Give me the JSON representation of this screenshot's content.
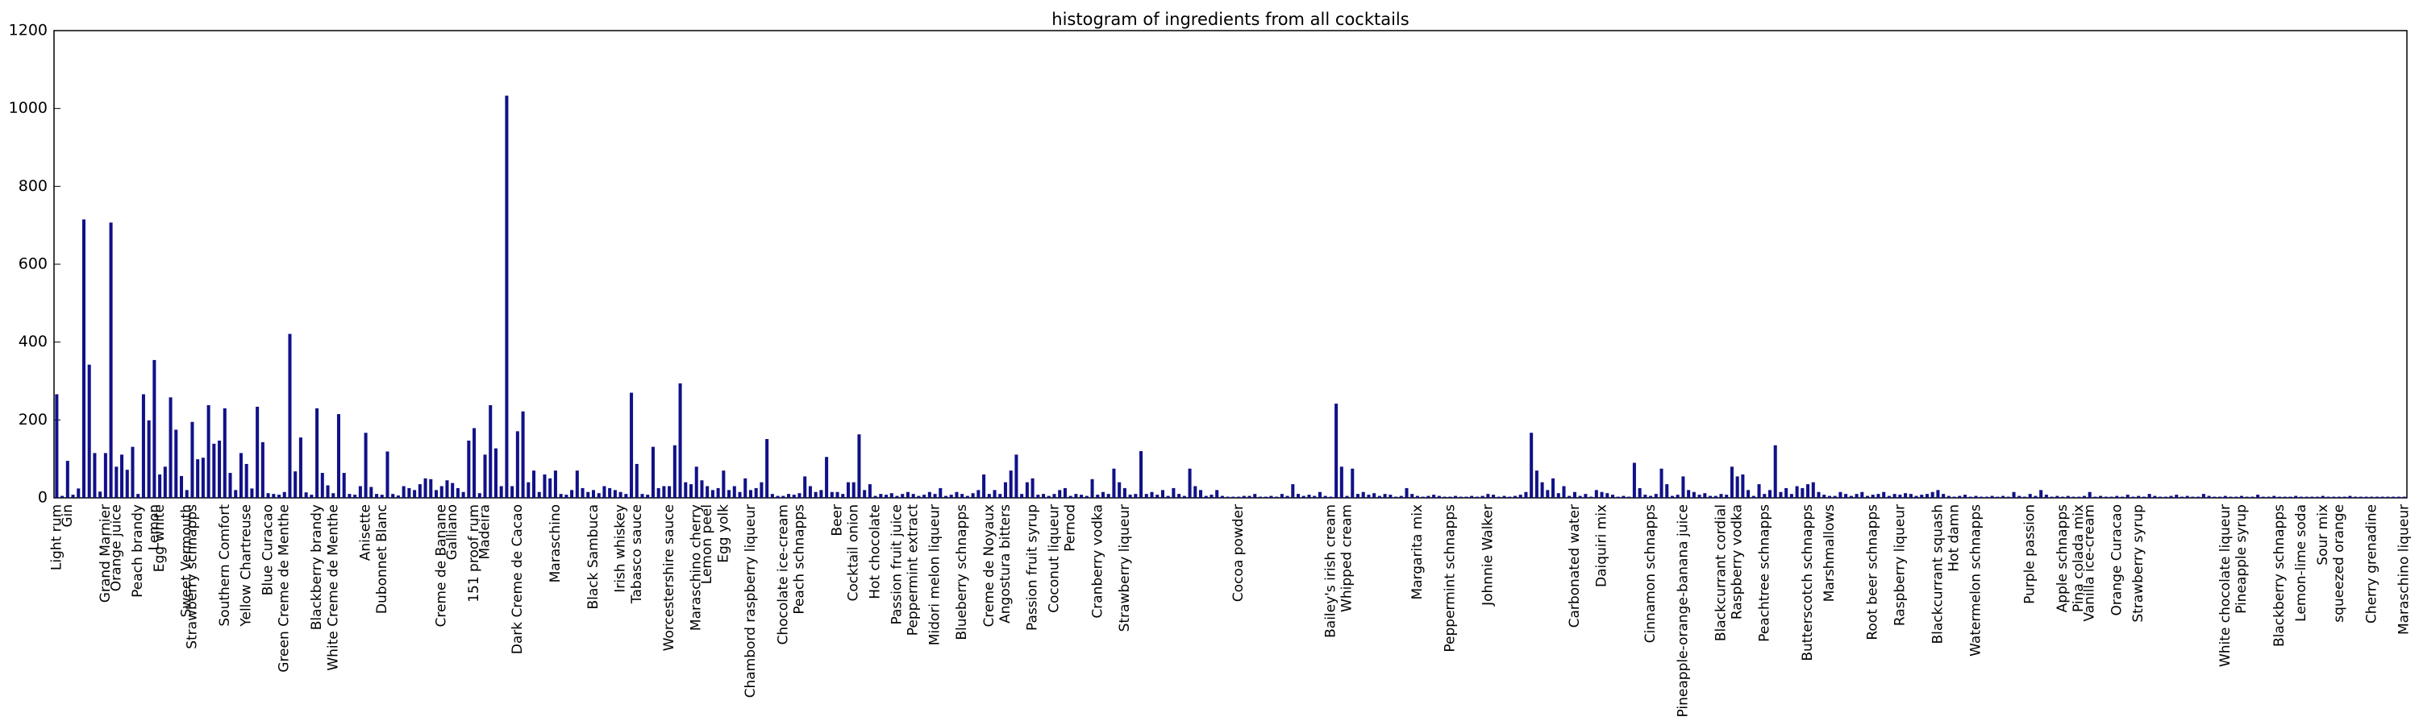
{
  "chart_data": {
    "type": "bar",
    "title": "histogram of ingredients from all cocktails",
    "color": "#111188",
    "ylim": [
      0,
      1200
    ],
    "yticks": [
      0,
      200,
      400,
      600,
      800,
      1000,
      1200
    ],
    "grid": false,
    "categories": [
      "Light rum",
      null,
      "Gin",
      null,
      null,
      null,
      null,
      null,
      null,
      "Grand Marnier",
      null,
      "Orange juice",
      null,
      null,
      null,
      "Peach brandy",
      null,
      null,
      "Lemon",
      "Egg white",
      null,
      null,
      null,
      null,
      "Sweet Vermouth",
      "Strawberry schnapps",
      null,
      null,
      null,
      null,
      null,
      "Southern Comfort",
      null,
      null,
      null,
      "Yellow Chartreuse",
      null,
      null,
      null,
      "Blue Curacao",
      null,
      null,
      "Green Creme de Menthe",
      null,
      null,
      null,
      null,
      null,
      "Blackberry brandy",
      null,
      null,
      "White Creme de Menthe",
      null,
      null,
      null,
      null,
      null,
      "Anisette",
      null,
      null,
      "Dubonnet Blanc",
      null,
      null,
      null,
      null,
      null,
      null,
      null,
      null,
      null,
      null,
      "Creme de Banane",
      null,
      "Galliano",
      null,
      null,
      null,
      "151 proof rum",
      null,
      "Madeira",
      null,
      null,
      null,
      null,
      null,
      "Dark Creme de Cacao",
      null,
      null,
      null,
      null,
      null,
      null,
      "Maraschino",
      null,
      null,
      null,
      null,
      null,
      null,
      "Black Sambuca",
      null,
      null,
      null,
      null,
      "Irish whiskey",
      null,
      null,
      "Tabasco sauce",
      null,
      null,
      null,
      null,
      null,
      "Worcestershire sauce",
      null,
      null,
      null,
      null,
      "Maraschino cherry",
      null,
      "Lemon peel",
      null,
      null,
      "Egg yolk",
      null,
      null,
      null,
      null,
      "Chambord raspberry liqueur",
      null,
      null,
      null,
      null,
      null,
      "Chocolate ice-cream",
      null,
      null,
      "Peach schnapps",
      null,
      null,
      null,
      null,
      null,
      null,
      "Beer",
      null,
      null,
      "Cocktail onion",
      null,
      null,
      null,
      "Hot chocolate",
      null,
      null,
      null,
      "Passion fruit juice",
      null,
      null,
      "Peppermint extract",
      null,
      null,
      null,
      "Midori melon liqueur",
      null,
      null,
      null,
      null,
      "Blueberry schnapps",
      null,
      null,
      null,
      null,
      "Creme de Noyaux",
      null,
      null,
      "Angostura bitters",
      null,
      null,
      null,
      null,
      "Passion fruit syrup",
      null,
      null,
      null,
      "Coconut liqueur",
      null,
      null,
      "Pernod",
      null,
      null,
      null,
      null,
      "Cranberry vodka",
      null,
      null,
      null,
      null,
      "Strawberry liqueur",
      null,
      null,
      null,
      null,
      null,
      null,
      null,
      null,
      null,
      null,
      null,
      null,
      null,
      null,
      null,
      null,
      null,
      null,
      null,
      null,
      "Cocoa powder",
      null,
      null,
      null,
      null,
      null,
      null,
      null,
      null,
      null,
      null,
      null,
      null,
      null,
      null,
      null,
      null,
      "Bailey's irish cream",
      null,
      null,
      "Whipped cream",
      null,
      null,
      null,
      null,
      null,
      null,
      null,
      null,
      null,
      null,
      null,
      null,
      "Margarita mix",
      null,
      null,
      null,
      null,
      null,
      "Peppermint schnapps",
      null,
      null,
      null,
      null,
      null,
      null,
      "Johnnie Walker",
      null,
      null,
      null,
      null,
      null,
      null,
      null,
      null,
      null,
      null,
      null,
      null,
      null,
      null,
      null,
      "Carbonated water",
      null,
      null,
      null,
      null,
      "Daiquiri mix",
      null,
      null,
      null,
      null,
      null,
      null,
      null,
      null,
      "Cinnamon schnapps",
      null,
      null,
      null,
      null,
      null,
      "Pineapple-orange-banana juice",
      null,
      null,
      null,
      null,
      null,
      null,
      "Blackcurrant cordial",
      null,
      null,
      "Raspberry vodka",
      null,
      null,
      null,
      null,
      "Peachtree schnapps",
      null,
      null,
      null,
      null,
      null,
      null,
      null,
      "Butterscotch schnapps",
      null,
      null,
      null,
      "Marshmallows",
      null,
      null,
      null,
      null,
      null,
      null,
      null,
      "Root beer schnapps",
      null,
      null,
      null,
      null,
      "Raspberry liqueur",
      null,
      null,
      null,
      null,
      null,
      null,
      "Blackcurrant squash",
      null,
      null,
      "Hot damn",
      null,
      null,
      null,
      "Watermelon schnapps",
      null,
      null,
      null,
      null,
      null,
      null,
      null,
      null,
      null,
      "Purple passion",
      null,
      null,
      null,
      null,
      null,
      "Apple schnapps",
      null,
      null,
      "Pina colada mix",
      null,
      "Vanilla ice-cream",
      null,
      null,
      null,
      null,
      "Orange Curacao",
      null,
      null,
      null,
      "Strawberry syrup",
      null,
      null,
      null,
      null,
      null,
      null,
      null,
      null,
      null,
      null,
      null,
      null,
      null,
      null,
      null,
      "White chocolate liqueur",
      null,
      null,
      "Pineapple syrup",
      null,
      null,
      null,
      null,
      null,
      null,
      "Blackberry schnapps",
      null,
      null,
      null,
      "Lemon-lime soda",
      null,
      null,
      null,
      "Sour mix",
      null,
      null,
      "squeezed orange",
      null,
      null,
      null,
      null,
      null,
      "Cherry grenadine",
      null,
      null,
      null,
      null,
      null,
      "Maraschino liqueur"
    ],
    "values": [
      266,
      5,
      95,
      8,
      24,
      715,
      342,
      115,
      16,
      115,
      707,
      80,
      111,
      72,
      131,
      10,
      266,
      199,
      354,
      60,
      80,
      258,
      175,
      56,
      20,
      195,
      99,
      103,
      238,
      139,
      147,
      230,
      64,
      20,
      115,
      87,
      24,
      234,
      143,
      12,
      10,
      8,
      15,
      421,
      68,
      155,
      14,
      8,
      230,
      64,
      32,
      12,
      215,
      64,
      10,
      8,
      30,
      167,
      28,
      10,
      8,
      119,
      10,
      6,
      30,
      25,
      20,
      35,
      50,
      48,
      20,
      30,
      45,
      38,
      25,
      15,
      147,
      179,
      12,
      111,
      238,
      127,
      30,
      1033,
      30,
      171,
      222,
      40,
      70,
      15,
      60,
      50,
      70,
      10,
      8,
      20,
      70,
      25,
      15,
      20,
      12,
      30,
      25,
      20,
      15,
      10,
      270,
      87,
      10,
      8,
      131,
      25,
      30,
      30,
      135,
      294,
      40,
      35,
      80,
      45,
      30,
      20,
      25,
      70,
      20,
      30,
      15,
      50,
      20,
      25,
      40,
      151,
      10,
      5,
      5,
      10,
      8,
      12,
      55,
      30,
      15,
      20,
      105,
      15,
      15,
      10,
      40,
      40,
      163,
      20,
      35,
      5,
      10,
      8,
      12,
      5,
      10,
      15,
      10,
      5,
      8,
      15,
      10,
      25,
      5,
      8,
      15,
      10,
      5,
      12,
      20,
      60,
      10,
      20,
      10,
      40,
      70,
      111,
      10,
      40,
      50,
      8,
      10,
      5,
      10,
      20,
      25,
      5,
      10,
      8,
      5,
      48,
      8,
      15,
      10,
      75,
      40,
      25,
      8,
      10,
      120,
      10,
      15,
      8,
      20,
      5,
      25,
      10,
      5,
      75,
      30,
      20,
      5,
      8,
      20,
      5,
      3,
      3,
      3,
      5,
      5,
      10,
      3,
      3,
      5,
      3,
      10,
      5,
      35,
      10,
      5,
      8,
      5,
      15,
      5,
      3,
      242,
      80,
      5,
      75,
      10,
      15,
      8,
      12,
      5,
      10,
      8,
      3,
      5,
      25,
      10,
      5,
      3,
      5,
      8,
      5,
      3,
      3,
      5,
      3,
      3,
      5,
      3,
      5,
      10,
      8,
      3,
      5,
      3,
      5,
      8,
      15,
      167,
      70,
      40,
      20,
      50,
      12,
      30,
      5,
      15,
      5,
      10,
      3,
      20,
      15,
      12,
      8,
      3,
      5,
      3,
      90,
      25,
      8,
      5,
      10,
      75,
      35,
      5,
      8,
      55,
      20,
      15,
      8,
      12,
      5,
      5,
      10,
      8,
      80,
      55,
      60,
      20,
      5,
      35,
      10,
      20,
      135,
      15,
      25,
      10,
      30,
      25,
      35,
      40,
      15,
      8,
      5,
      5,
      15,
      10,
      5,
      10,
      15,
      5,
      8,
      10,
      15,
      5,
      10,
      8,
      12,
      10,
      5,
      8,
      10,
      15,
      20,
      10,
      5,
      3,
      5,
      8,
      3,
      5,
      3,
      3,
      5,
      3,
      5,
      3,
      15,
      5,
      3,
      10,
      5,
      20,
      8,
      3,
      5,
      3,
      5,
      3,
      3,
      5,
      15,
      3,
      5,
      3,
      3,
      5,
      3,
      8,
      3,
      5,
      3,
      10,
      5,
      3,
      3,
      5,
      8,
      3,
      5,
      3,
      3,
      10,
      5,
      3,
      3,
      5,
      3,
      3,
      5,
      3,
      3,
      8,
      3,
      3,
      5,
      3,
      3,
      3,
      5,
      3,
      3,
      3,
      3,
      5,
      3,
      3,
      3,
      3,
      5,
      3,
      3,
      3,
      3,
      3,
      3,
      3,
      3,
      3,
      3
    ]
  }
}
